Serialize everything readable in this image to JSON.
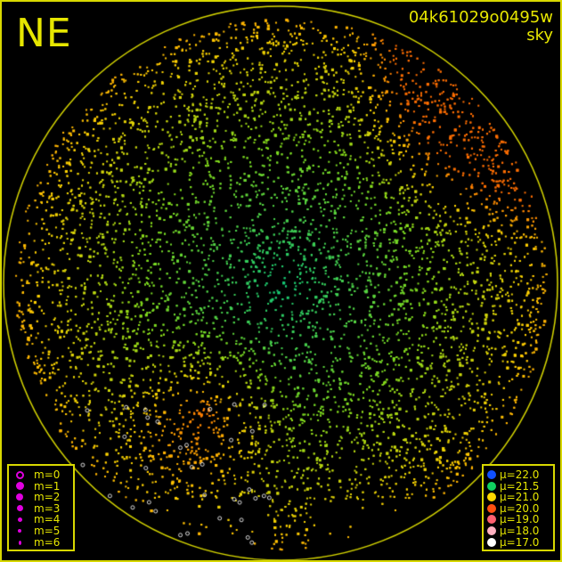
{
  "header": {
    "direction": "NE",
    "frame_id": "04k61029o0495w",
    "mode": "sky"
  },
  "colors": {
    "frame": "#d8d800",
    "text": "#e6e600",
    "magnitude_marker": "#e000e0"
  },
  "magnitude_legend": [
    {
      "label": "m=0",
      "style": "ring"
    },
    {
      "label": "m=1",
      "style": "dot"
    },
    {
      "label": "m=2",
      "style": "dot"
    },
    {
      "label": "m=3",
      "style": "dot"
    },
    {
      "label": "m=4",
      "style": "dot"
    },
    {
      "label": "m=5",
      "style": "dot"
    },
    {
      "label": "m=6",
      "style": "dot"
    }
  ],
  "sky_legend": [
    {
      "label": "μ=22.0",
      "color": "#1050ff"
    },
    {
      "label": "μ=21.5",
      "color": "#10d060"
    },
    {
      "label": "μ=21.0",
      "color": "#ffd800"
    },
    {
      "label": "μ=20.0",
      "color": "#ff5010"
    },
    {
      "label": "μ=19.0",
      "color": "#ff6070"
    },
    {
      "label": "μ=18.0",
      "color": "#ffb0c0"
    },
    {
      "label": "μ=17.0",
      "color": "#ffffff"
    }
  ]
}
